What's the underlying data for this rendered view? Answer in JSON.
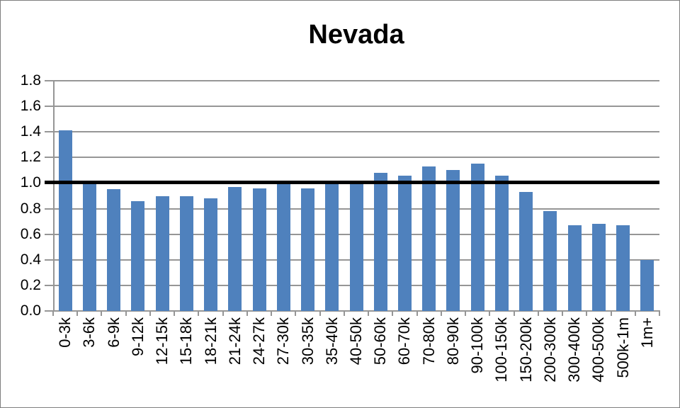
{
  "window": {
    "background": "#FFFFFF",
    "border_color": "#7F7F7F"
  },
  "chart_data": {
    "type": "bar",
    "title": "Nevada",
    "xlabel": "",
    "ylabel": "",
    "categories": [
      "0-3k",
      "3-6k",
      "6-9k",
      "9-12k",
      "12-15k",
      "15-18k",
      "18-21k",
      "21-24k",
      "24-27k",
      "27-30k",
      "30-35k",
      "35-40k",
      "40-50k",
      "50-60k",
      "60-70k",
      "70-80k",
      "80-90k",
      "90-100k",
      "100-150k",
      "150-200k",
      "200-300k",
      "300-400k",
      "400-500k",
      "500k-1m",
      "1m+"
    ],
    "values": [
      1.41,
      0.99,
      0.95,
      0.86,
      0.9,
      0.9,
      0.88,
      0.97,
      0.96,
      0.99,
      0.96,
      0.99,
      0.99,
      1.08,
      1.06,
      1.13,
      1.1,
      1.15,
      1.06,
      0.93,
      0.78,
      0.67,
      0.68,
      0.67,
      0.4
    ],
    "ylim": [
      0,
      1.8
    ],
    "ytick_step": 0.2,
    "ytick_labels": [
      "0.0",
      "0.2",
      "0.4",
      "0.6",
      "0.8",
      "1.0",
      "1.2",
      "1.4",
      "1.6",
      "1.8"
    ],
    "grid": true,
    "legend": false,
    "reference_line": {
      "value": 1.0,
      "color": "#000000"
    },
    "bar_color": "#4F81BD",
    "gridline_color": "#969696",
    "axis_color": "#969696",
    "text_color": "#000000"
  }
}
